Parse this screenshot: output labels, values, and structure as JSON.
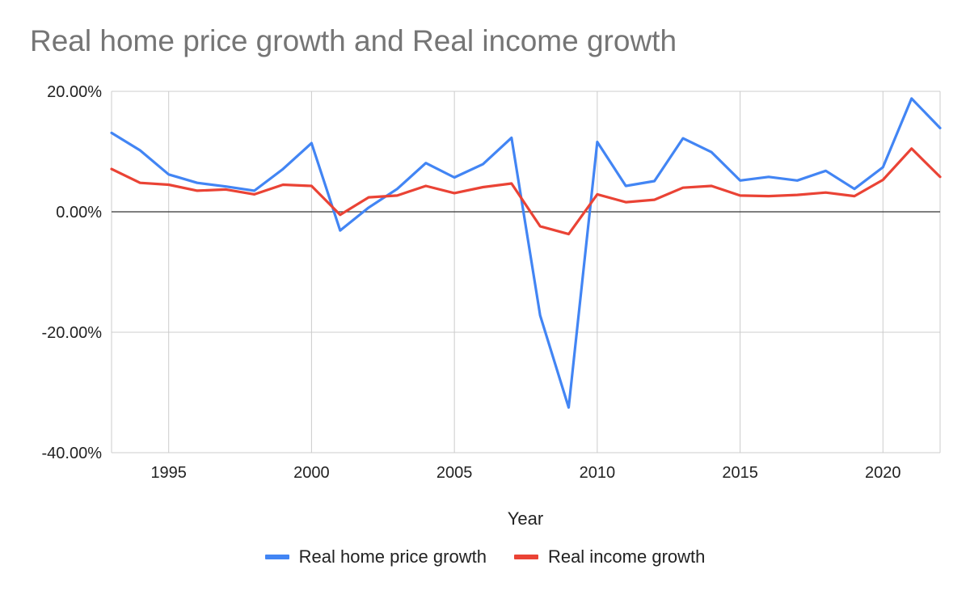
{
  "colors": {
    "home": "#4285F4",
    "income": "#EA4335",
    "grid": "#cccccc",
    "zero_line": "#333333",
    "title": "#757575"
  },
  "chart_data": {
    "type": "line",
    "title": "Real home price growth and Real income growth",
    "xlabel": "Year",
    "ylabel": "",
    "xlim": [
      1993,
      2022
    ],
    "ylim": [
      -0.4,
      0.2
    ],
    "x_ticks": [
      1995,
      2000,
      2005,
      2010,
      2015,
      2020
    ],
    "x_tick_labels": [
      "1995",
      "2000",
      "2005",
      "2010",
      "2015",
      "2020"
    ],
    "y_ticks": [
      0.2,
      0,
      -0.2,
      -0.4
    ],
    "y_tick_labels": [
      "20.00%",
      "0.00%",
      "-20.00%",
      "-40.00%"
    ],
    "grid": true,
    "legend_position": "bottom",
    "x": [
      1993,
      1994,
      1995,
      1996,
      1997,
      1998,
      1999,
      2000,
      2001,
      2002,
      2003,
      2004,
      2005,
      2006,
      2007,
      2008,
      2009,
      2010,
      2011,
      2012,
      2013,
      2014,
      2015,
      2016,
      2017,
      2018,
      2019,
      2020,
      2021,
      2022
    ],
    "series": [
      {
        "name": "Real home price growth",
        "color": "#4285F4",
        "values": [
          0.131,
          0.102,
          0.062,
          0.048,
          0.042,
          0.035,
          0.071,
          0.114,
          -0.031,
          0.007,
          0.038,
          0.081,
          0.057,
          0.079,
          0.123,
          -0.172,
          -0.325,
          0.116,
          0.043,
          0.051,
          0.122,
          0.099,
          0.052,
          0.058,
          0.052,
          0.068,
          0.038,
          0.074,
          0.188,
          0.139
        ]
      },
      {
        "name": "Real income growth",
        "color": "#EA4335",
        "values": [
          0.071,
          0.048,
          0.045,
          0.035,
          0.037,
          0.029,
          0.045,
          0.043,
          -0.005,
          0.024,
          0.027,
          0.043,
          0.031,
          0.041,
          0.047,
          -0.024,
          -0.037,
          0.029,
          0.016,
          0.02,
          0.04,
          0.043,
          0.027,
          0.026,
          0.028,
          0.032,
          0.026,
          0.053,
          0.105,
          0.058
        ]
      }
    ]
  }
}
